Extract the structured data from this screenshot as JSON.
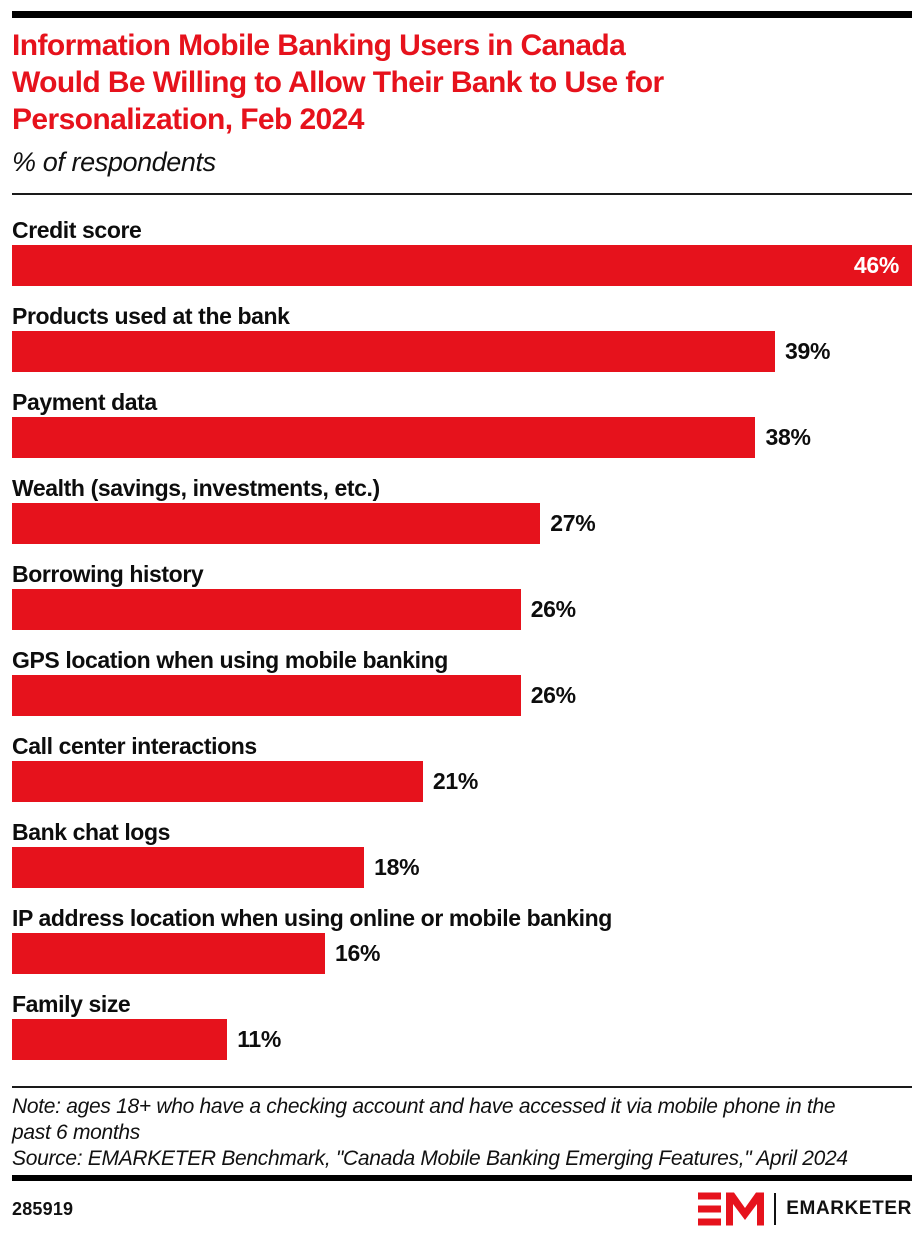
{
  "header": {
    "title_lines": [
      "Information Mobile Banking Users in Canada",
      "Would Be Willing to Allow Their Bank to Use for",
      "Personalization, Feb 2024"
    ],
    "subtitle": "% of respondents"
  },
  "chart_data": {
    "type": "bar",
    "orientation": "horizontal",
    "title": "Information Mobile Banking Users in Canada Would Be Willing to Allow Their Bank to Use for Personalization, Feb 2024",
    "subtitle": "% of respondents",
    "xlabel": "",
    "ylabel": "",
    "axis_max": 46,
    "grid": false,
    "legend": "none",
    "bar_color": "#e6121c",
    "categories": [
      "Credit score",
      "Products used at the bank",
      "Payment data",
      "Wealth (savings, investments, etc.)",
      "Borrowing history",
      "GPS location when using mobile banking",
      "Call center interactions",
      "Bank chat logs",
      "IP address location when using online or mobile banking",
      "Family size"
    ],
    "values": [
      46,
      39,
      38,
      27,
      26,
      26,
      21,
      18,
      16,
      11
    ],
    "value_labels": [
      "46%",
      "39%",
      "38%",
      "27%",
      "26%",
      "26%",
      "21%",
      "18%",
      "16%",
      "11%"
    ]
  },
  "footer": {
    "note_lines": [
      "Note: ages 18+ who have a checking account and have accessed it via mobile phone in the",
      "past 6 months",
      "Source: EMARKETER Benchmark, \"Canada Mobile Banking Emerging Features,\" April 2024"
    ],
    "chart_id": "285919",
    "brand_name": "EMARKETER",
    "logo_monogram": "EM-monogram-icon"
  },
  "colors": {
    "accent_red": "#e6121c",
    "text_black": "#0d0d0d",
    "background": "#ffffff"
  }
}
